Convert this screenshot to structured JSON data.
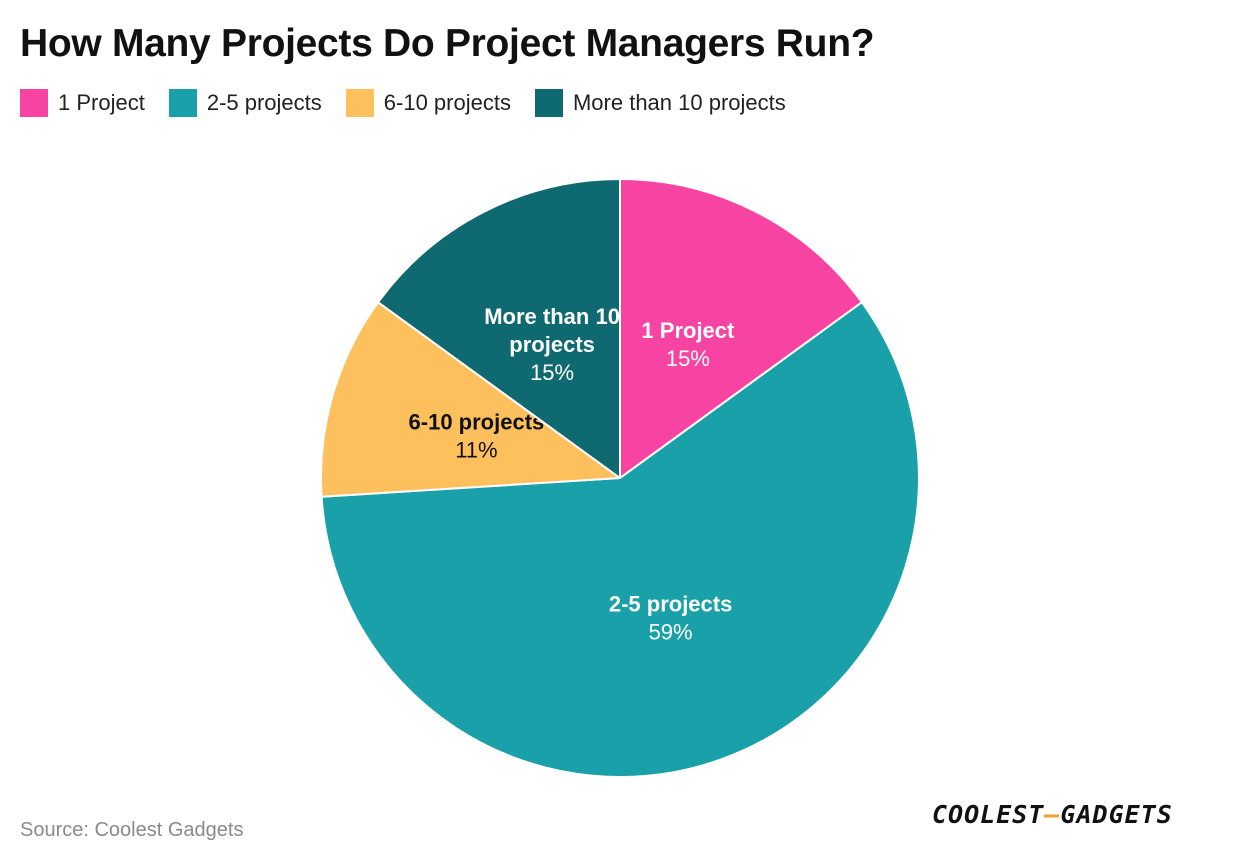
{
  "chart_data": {
    "type": "pie",
    "title": "How Many Projects Do Project Managers Run?",
    "legend_position": "top-left",
    "slices": [
      {
        "label": "1 Project",
        "value": 15,
        "value_label": "15%",
        "color": "#f744a2",
        "text_color": "#ffffff",
        "label_lines": [
          "1 Project"
        ]
      },
      {
        "label": "2-5 projects",
        "value": 59,
        "value_label": "59%",
        "color": "#19a0a8",
        "text_color": "#ffffff",
        "label_lines": [
          "2-5 projects"
        ]
      },
      {
        "label": "6-10 projects",
        "value": 11,
        "value_label": "11%",
        "color": "#fdc05c",
        "text_color": "#111111",
        "label_lines": [
          "6-10 projects"
        ]
      },
      {
        "label": "More than 10 projects",
        "value": 15,
        "value_label": "15%",
        "color": "#0e6a70",
        "text_color": "#ffffff",
        "label_lines": [
          "More than 10",
          "projects"
        ]
      }
    ]
  },
  "footer": {
    "source": "Source: Coolest Gadgets",
    "logo_left": "COOLEST",
    "logo_dash": "—",
    "logo_right": "GADGETS"
  }
}
